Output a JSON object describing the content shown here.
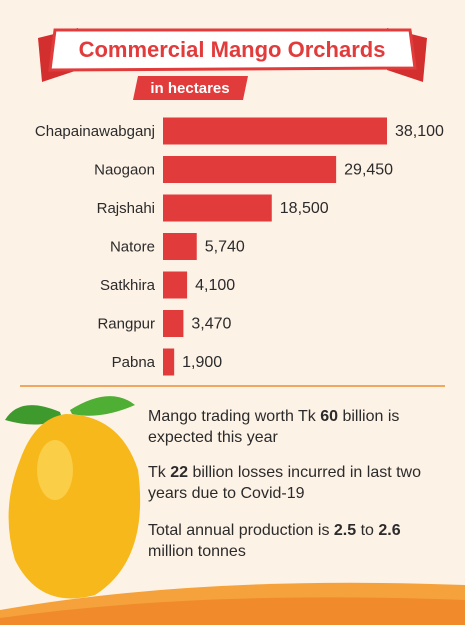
{
  "chart_data": {
    "type": "hbar",
    "title": "Commercial Mango Orchards",
    "subtitle": "in hectares",
    "categories": [
      "Chapainawabganj",
      "Naogaon",
      "Rajshahi",
      "Natore",
      "Satkhira",
      "Rangpur",
      "Pabna"
    ],
    "values": [
      38100,
      29450,
      18500,
      5740,
      4100,
      3470,
      1900
    ],
    "value_labels": [
      "38,100",
      "29,450",
      "18,500",
      "5,740",
      "4,100",
      "3,470",
      "1,900"
    ],
    "color": "#e23b3b"
  },
  "facts": [
    [
      {
        "text": "Mango trading worth Tk ",
        "bold": false
      },
      {
        "text": "60",
        "bold": true
      },
      {
        "text": " billion is expected this year",
        "bold": false
      }
    ],
    [
      {
        "text": "Tk ",
        "bold": false
      },
      {
        "text": "22",
        "bold": true
      },
      {
        "text": " billion losses incurred in last two years due to Covid-19",
        "bold": false
      }
    ],
    [
      {
        "text": "Total annual production is ",
        "bold": false
      },
      {
        "text": "2.5",
        "bold": true
      },
      {
        "text": " to ",
        "bold": false
      },
      {
        "text": "2.6",
        "bold": true
      },
      {
        "text": " million tonnes",
        "bold": false
      }
    ]
  ]
}
